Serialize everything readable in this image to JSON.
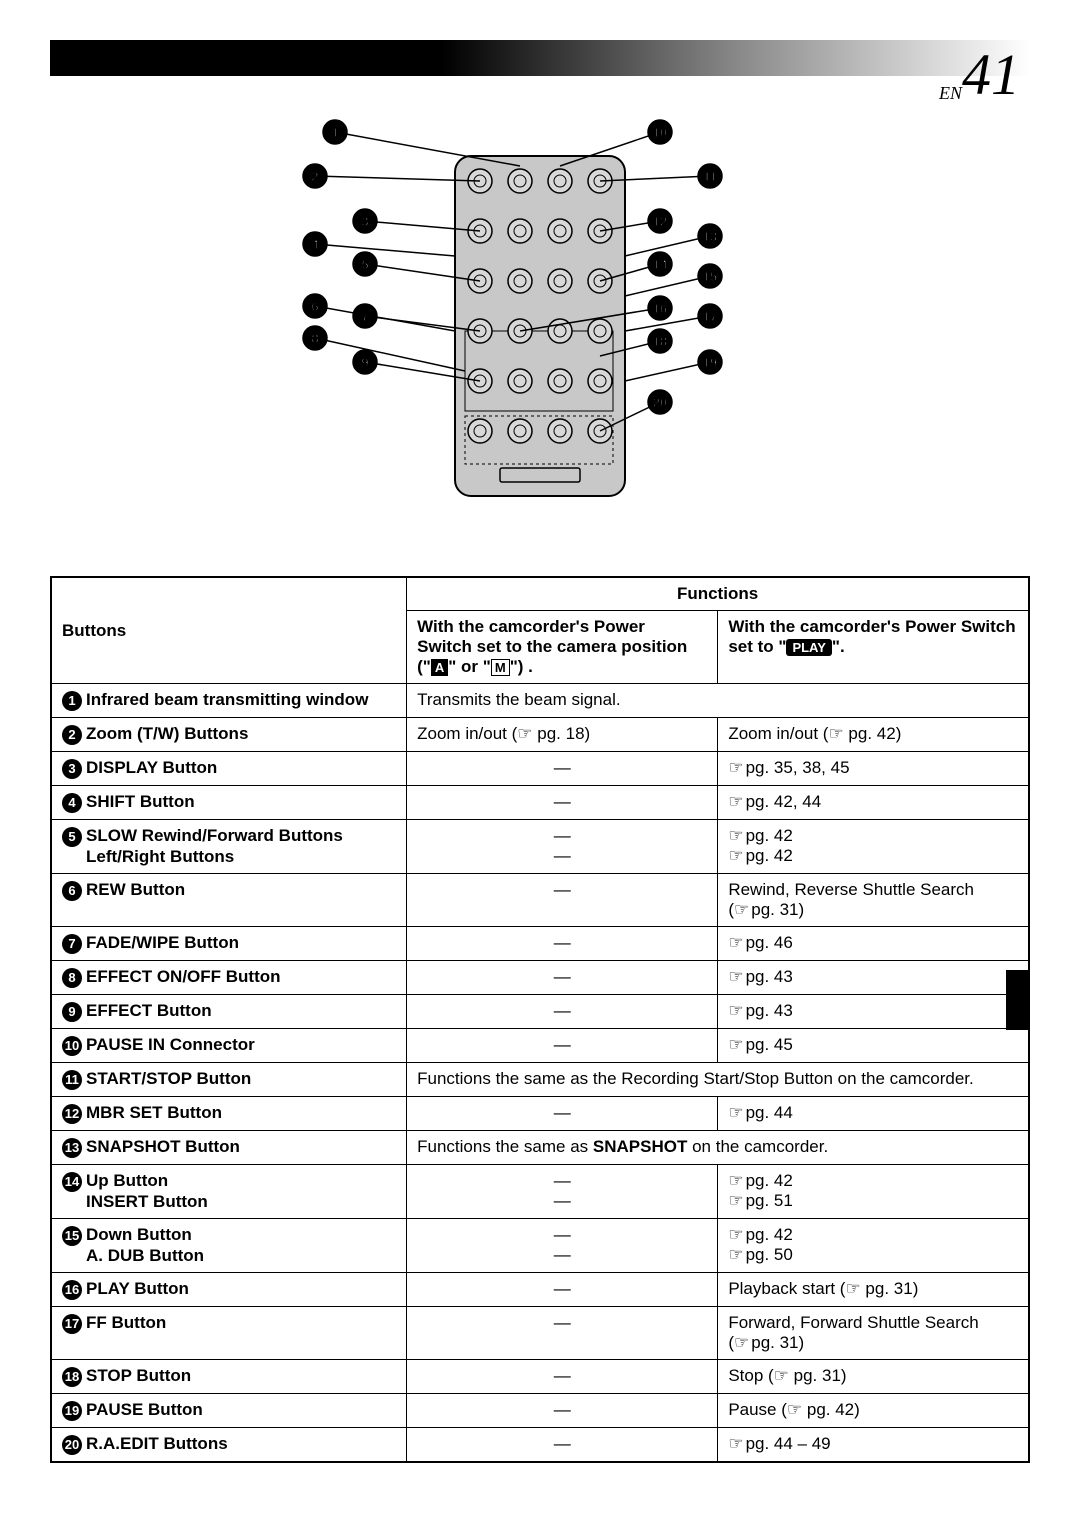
{
  "page": {
    "prefix": "EN",
    "number": "41"
  },
  "diagram": {
    "rows": 6,
    "cols": 4,
    "left_labels": [
      1,
      2,
      3,
      4,
      5,
      6,
      7,
      8,
      9
    ],
    "right_labels": [
      10,
      11,
      12,
      13,
      14,
      15,
      16,
      17,
      18,
      19,
      20
    ]
  },
  "table": {
    "header": {
      "functions": "Functions",
      "buttons": "Buttons",
      "col_camera_line1": "With the camcorder's Power",
      "col_camera_line2": "Switch set to the camera position",
      "col_camera_line3_prefix": "(\"",
      "col_camera_line3_mid": "\" or \"",
      "col_camera_line3_suffix": "\") .",
      "col_play_line1": "With the camcorder's Power Switch",
      "col_play_line2_prefix": "set to \"",
      "col_play_line2_suffix": "\".",
      "mode_a": "A",
      "mode_m": "M",
      "play_label": "PLAY"
    },
    "rows": [
      {
        "num": "1",
        "label": "Infrared beam transmitting window",
        "span": true,
        "spantext": "Transmits the beam signal."
      },
      {
        "num": "2",
        "label": "Zoom (T/W) Buttons",
        "camera_ref": "Zoom in/out (☞ pg. 18)",
        "camera_raw": true,
        "play_ref": "Zoom in/out (☞ pg. 42)",
        "play_raw": true
      },
      {
        "num": "3",
        "label": "DISPLAY Button",
        "camera": "—",
        "play_ref": "pg. 35, 38, 45"
      },
      {
        "num": "4",
        "label": "SHIFT Button",
        "camera": "—",
        "play_ref": "pg. 42, 44"
      },
      {
        "num": "5",
        "label": "SLOW Rewind/Forward Buttons",
        "label2": "Left/Right Buttons",
        "camera": "—",
        "camera2": "—",
        "play_ref": "pg. 42",
        "play_ref2": "pg. 42"
      },
      {
        "num": "6",
        "label": "REW Button",
        "camera": "—",
        "play_text": "Rewind, Reverse Shuttle Search",
        "play_ref_paren": "pg. 31"
      },
      {
        "num": "7",
        "label": "FADE/WIPE Button",
        "camera": "—",
        "play_ref": "pg. 46"
      },
      {
        "num": "8",
        "label": "EFFECT ON/OFF Button",
        "camera": "—",
        "play_ref": "pg. 43"
      },
      {
        "num": "9",
        "label": "EFFECT Button",
        "camera": "—",
        "play_ref": "pg. 43"
      },
      {
        "num": "10",
        "label": "PAUSE IN Connector",
        "camera": "—",
        "play_ref": "pg. 45"
      },
      {
        "num": "11",
        "label": "START/STOP Button",
        "span": true,
        "spantext": "Functions the same as the Recording Start/Stop Button on the camcorder."
      },
      {
        "num": "12",
        "label": "MBR SET Button",
        "camera": "—",
        "play_ref": "pg. 44"
      },
      {
        "num": "13",
        "label": "SNAPSHOT Button",
        "span": true,
        "span_html": "snapshot"
      },
      {
        "num": "14",
        "label": "Up Button",
        "label2": "INSERT Button",
        "camera": "—",
        "camera2": "—",
        "play_ref": "pg. 42",
        "play_ref2": "pg. 51"
      },
      {
        "num": "15",
        "label": "Down Button",
        "label2": "A. DUB Button",
        "camera": "—",
        "camera2": "—",
        "play_ref": "pg. 42",
        "play_ref2": "pg. 50"
      },
      {
        "num": "16",
        "label": "PLAY Button",
        "camera": "—",
        "play_ref": "Playback start (☞ pg. 31)",
        "play_raw": true
      },
      {
        "num": "17",
        "label": "FF Button",
        "camera": "—",
        "play_text": "Forward, Forward Shuttle Search",
        "play_ref_paren": "pg. 31"
      },
      {
        "num": "18",
        "label": "STOP Button",
        "camera": "—",
        "play_ref": "Stop (☞ pg. 31)",
        "play_raw": true
      },
      {
        "num": "19",
        "label": "PAUSE Button",
        "camera": "—",
        "play_ref": "Pause (☞ pg. 42)",
        "play_raw": true
      },
      {
        "num": "20",
        "label": "R.A.EDIT Buttons",
        "camera": "—",
        "play_ref": "pg. 44 – 49"
      }
    ],
    "snapshot_span": {
      "pre": "Functions the same as ",
      "bold": "SNAPSHOT",
      "post": " on the camcorder."
    }
  }
}
